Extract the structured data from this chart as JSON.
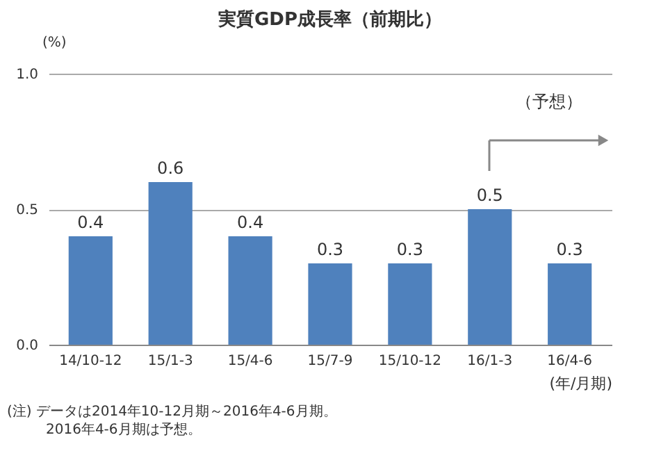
{
  "chart_data": {
    "type": "bar",
    "title": "実質GDP成長率（前期比）",
    "ylabel": "(%)",
    "xlabel": "(年/月期)",
    "categories": [
      "14/10-12",
      "15/1-3",
      "15/4-6",
      "15/7-9",
      "15/10-12",
      "16/1-3",
      "16/4-6"
    ],
    "values": [
      0.4,
      0.6,
      0.4,
      0.3,
      0.3,
      0.5,
      0.3
    ],
    "color": "#4f81bd",
    "ylim": [
      0,
      1
    ],
    "yticks": [
      {
        "value": 0,
        "label": "0.0"
      },
      {
        "value": 0.5,
        "label": "0.5"
      },
      {
        "value": 1,
        "label": "1.0"
      }
    ],
    "grid": "y",
    "data_labels": true,
    "annotations": [
      "（予想）",
      "(注) データは2014年10-12月期～2016年4-6月期。",
      "2016年4-6月期は予想。"
    ]
  }
}
